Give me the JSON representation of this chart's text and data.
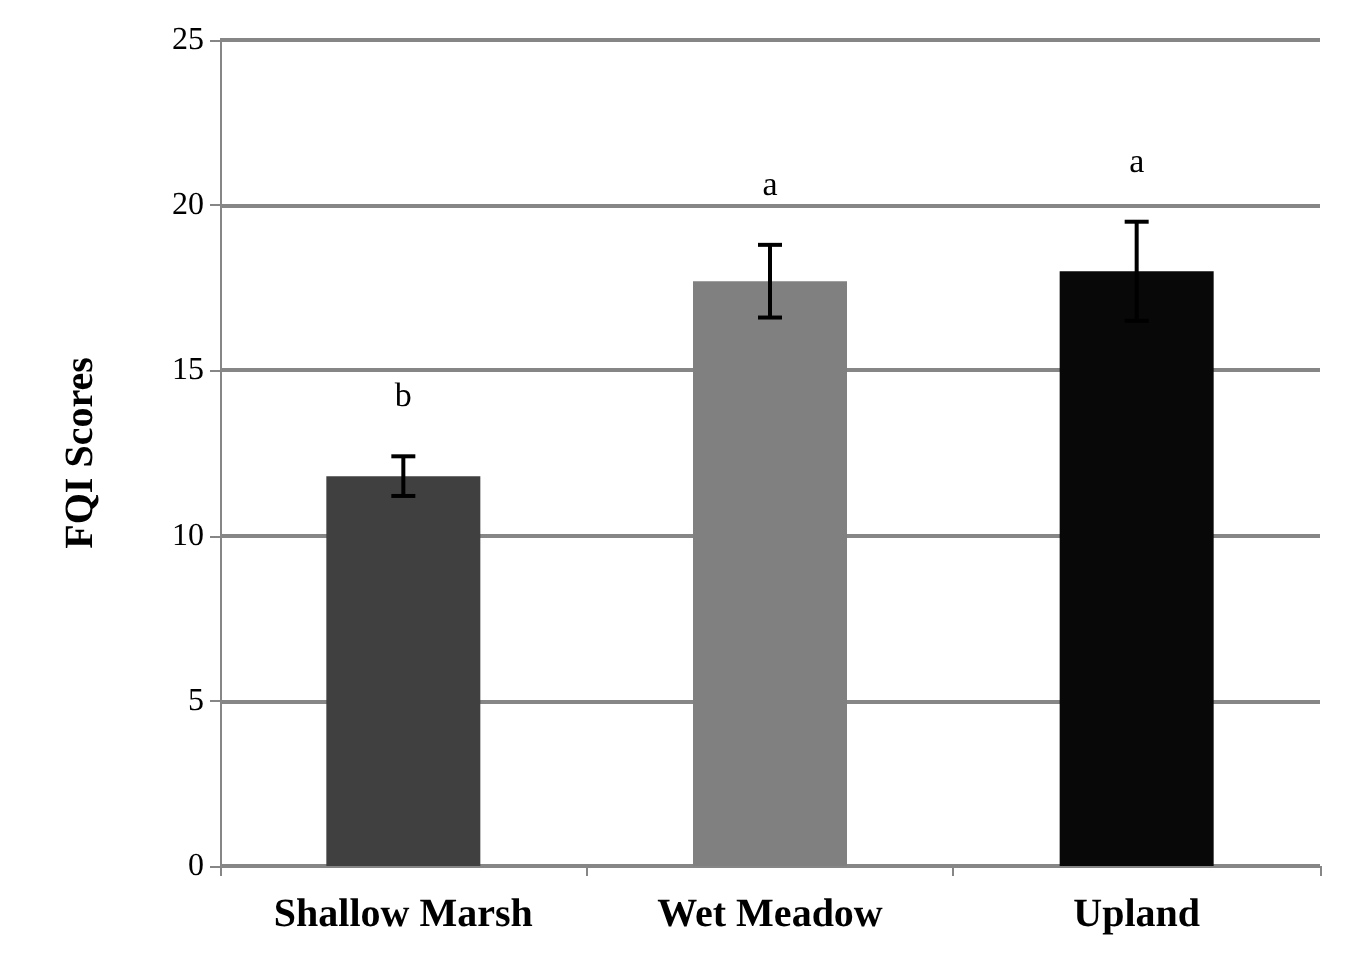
{
  "chart_data": {
    "type": "bar",
    "ylabel": "FQI Scores",
    "categories": [
      "Shallow Marsh",
      "Wet Meadow",
      "Upland"
    ],
    "values": [
      11.8,
      17.7,
      18.0
    ],
    "colors": [
      "#404040",
      "#808080",
      "#080808"
    ],
    "errors": [
      0.6,
      1.1,
      1.5
    ],
    "ylim": [
      0,
      25
    ],
    "yticks": [
      0,
      5,
      10,
      15,
      20,
      25
    ],
    "grid": "y",
    "annotations": [
      "b",
      "a",
      "a"
    ]
  }
}
